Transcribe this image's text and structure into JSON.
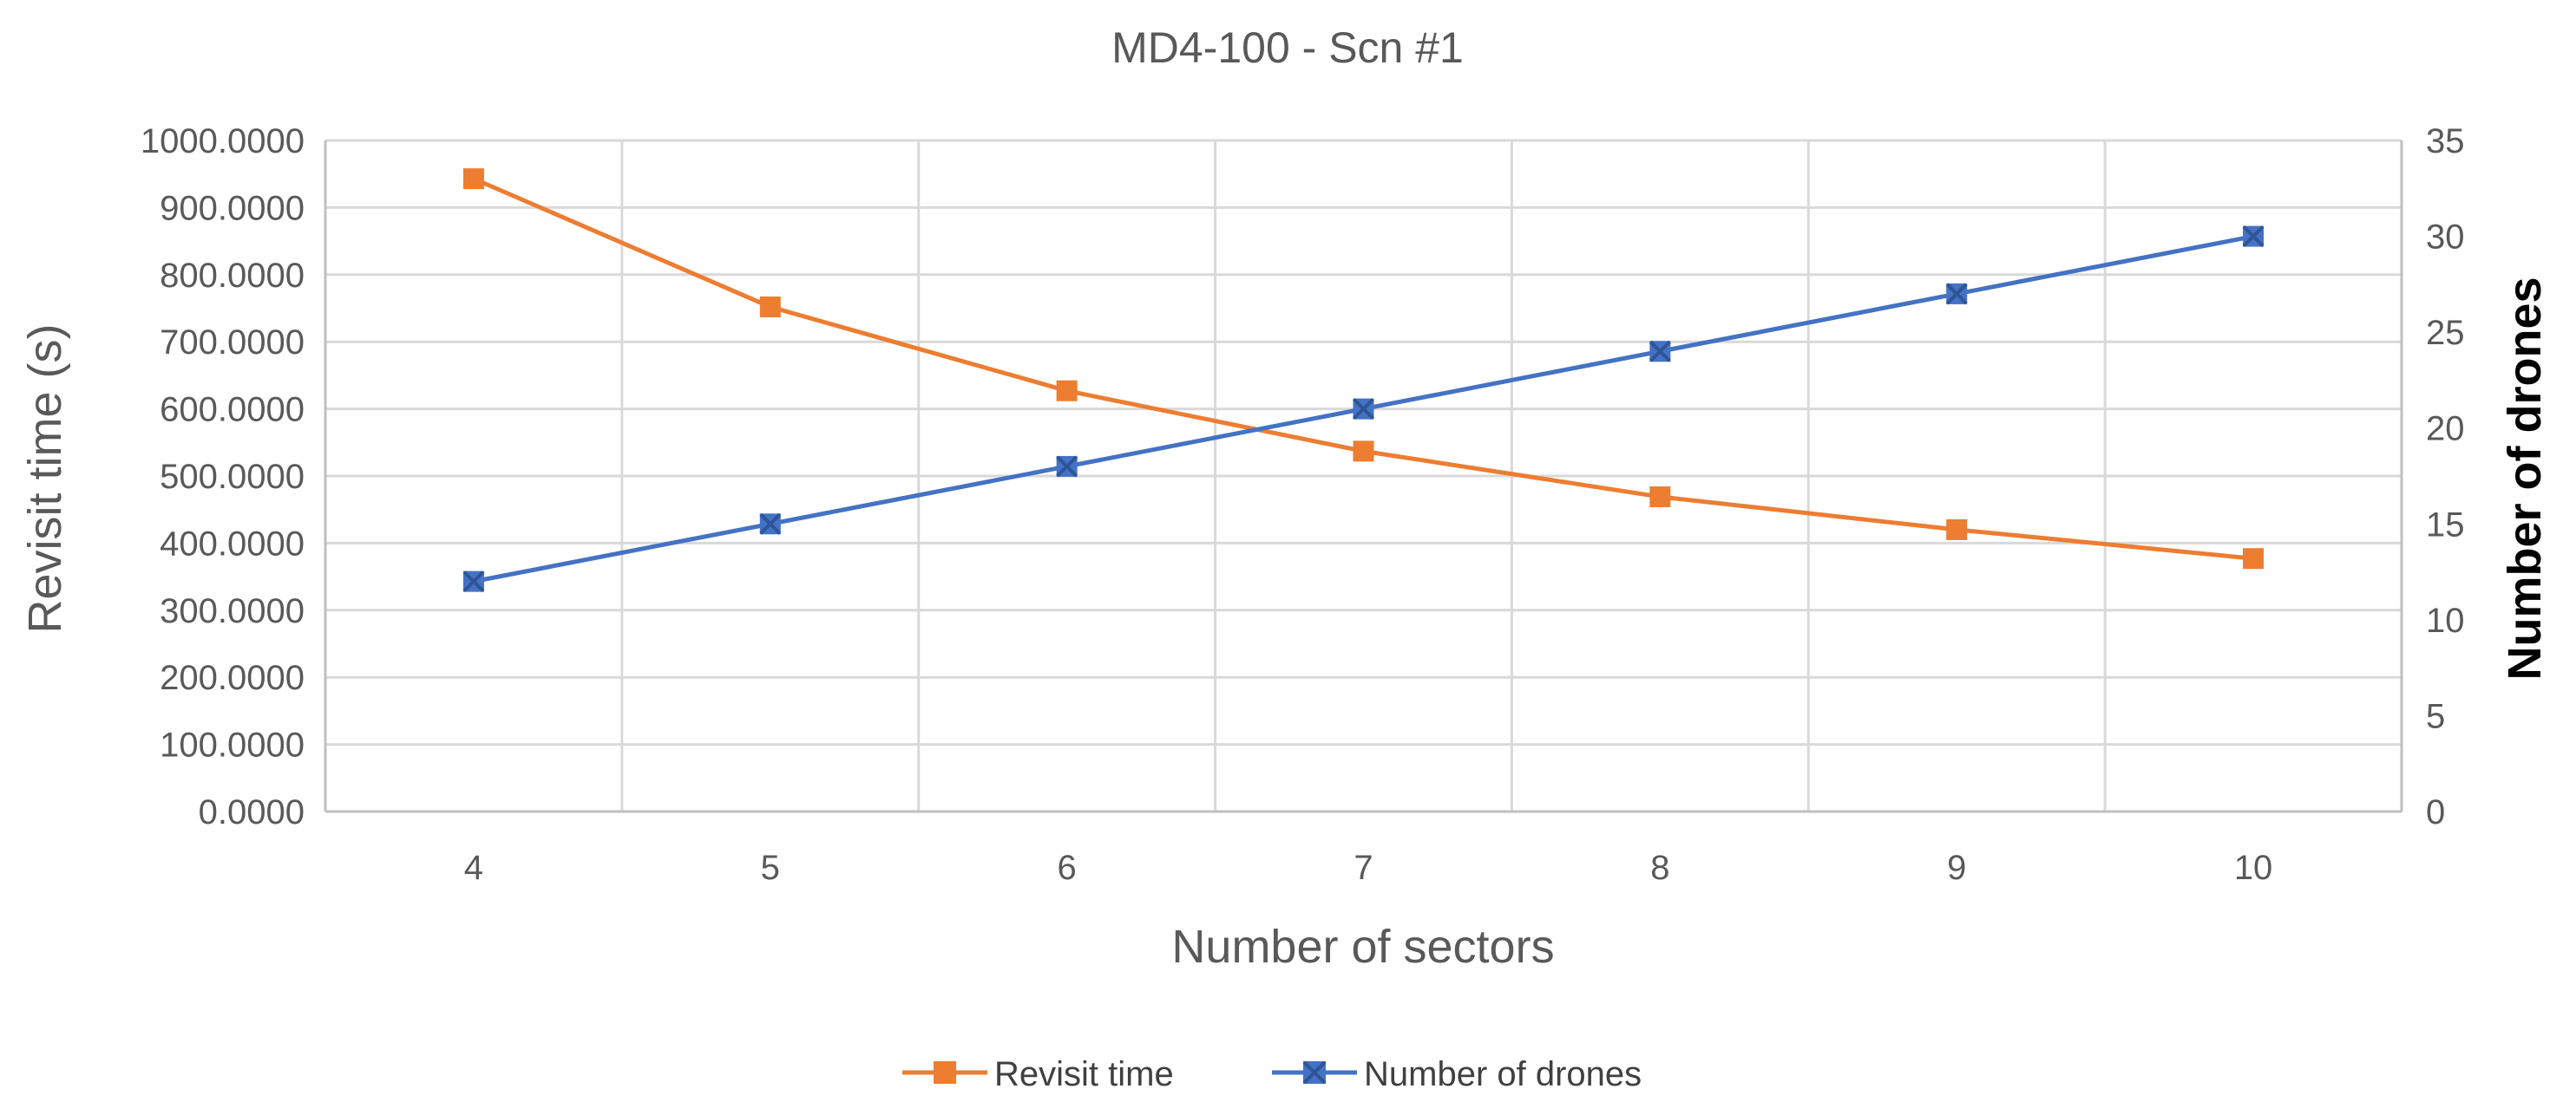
{
  "chart_data": {
    "type": "line",
    "title": "MD4-100 - Scn #1",
    "xlabel": "Number of sectors",
    "ylabel": "Revisit time (s)",
    "y2label": "Number of drones",
    "x": [
      4,
      5,
      6,
      7,
      8,
      9,
      10
    ],
    "x_tick_labels": [
      "4",
      "5",
      "6",
      "7",
      "8",
      "9",
      "10"
    ],
    "ylim": [
      0,
      1000
    ],
    "y_tick_labels": [
      "0.0000",
      "100.0000",
      "200.0000",
      "300.0000",
      "400.0000",
      "500.0000",
      "600.0000",
      "700.0000",
      "800.0000",
      "900.0000",
      "1000.0000"
    ],
    "y2lim": [
      0,
      35
    ],
    "y2_tick_labels": [
      "0",
      "5",
      "10",
      "15",
      "20",
      "25",
      "30",
      "35"
    ],
    "grid": true,
    "legend_position": "bottom",
    "series": [
      {
        "name": "Revisit time",
        "axis": "left",
        "color": "#ed7d31",
        "marker": "square",
        "values": [
          943,
          752,
          627,
          537,
          469,
          420,
          377
        ]
      },
      {
        "name": "Number of drones",
        "axis": "right",
        "color": "#4472c4",
        "marker": "x-square",
        "values": [
          12,
          15,
          18,
          21,
          24,
          27,
          30
        ]
      }
    ]
  }
}
